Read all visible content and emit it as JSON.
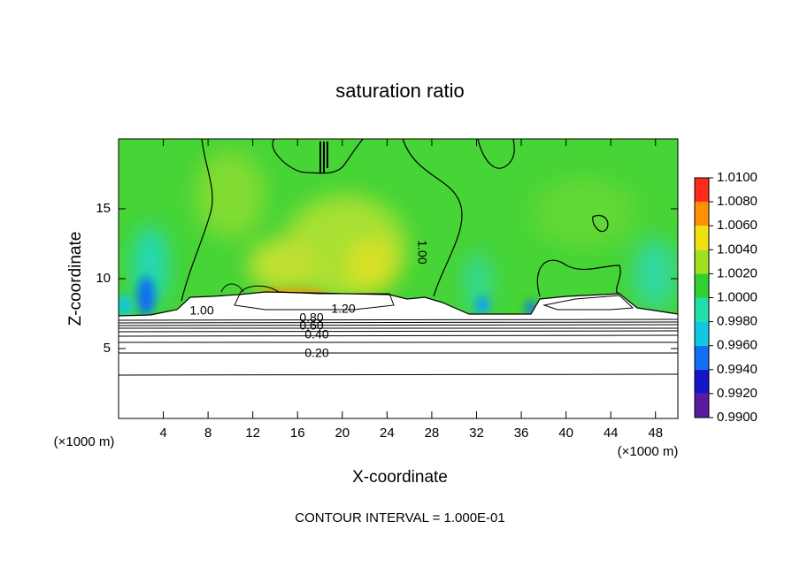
{
  "chart_data": {
    "type": "contour",
    "title": "saturation ratio",
    "x_label": "X-coordinate",
    "y_label": "Z-coordinate",
    "x_unit_left": "(×1000 m)",
    "x_unit_right": "(×1000 m)",
    "footer": "CONTOUR INTERVAL = 1.000E-01",
    "xlim": [
      0,
      50
    ],
    "xticks": [
      4,
      8,
      12,
      16,
      20,
      24,
      28,
      32,
      36,
      40,
      44,
      48
    ],
    "ylim": [
      0,
      20
    ],
    "yticks": [
      5,
      10,
      15
    ],
    "contour_labels": [
      "1.20",
      "0.80",
      "0.60",
      "0.40",
      "0.20",
      "1.00",
      "1.00"
    ],
    "colorbar": {
      "lim": [
        0.99,
        1.01
      ],
      "ticks": [
        {
          "value": 0.99,
          "label": "0.9900"
        },
        {
          "value": 0.992,
          "label": "0.9920"
        },
        {
          "value": 0.994,
          "label": "0.9940"
        },
        {
          "value": 0.996,
          "label": "0.9960"
        },
        {
          "value": 0.998,
          "label": "0.9980"
        },
        {
          "value": 1.0,
          "label": "1.0000"
        },
        {
          "value": 1.002,
          "label": "1.0020"
        },
        {
          "value": 1.004,
          "label": "1.0040"
        },
        {
          "value": 1.006,
          "label": "1.0060"
        },
        {
          "value": 1.008,
          "label": "1.0080"
        },
        {
          "value": 1.01,
          "label": "1.0100"
        }
      ],
      "colors": [
        "#5a1aa0",
        "#1414c8",
        "#1070f0",
        "#10c8e0",
        "#20e0a8",
        "#30d030",
        "#a0e020",
        "#f0e010",
        "#ff9000",
        "#ff2a1a"
      ]
    }
  }
}
